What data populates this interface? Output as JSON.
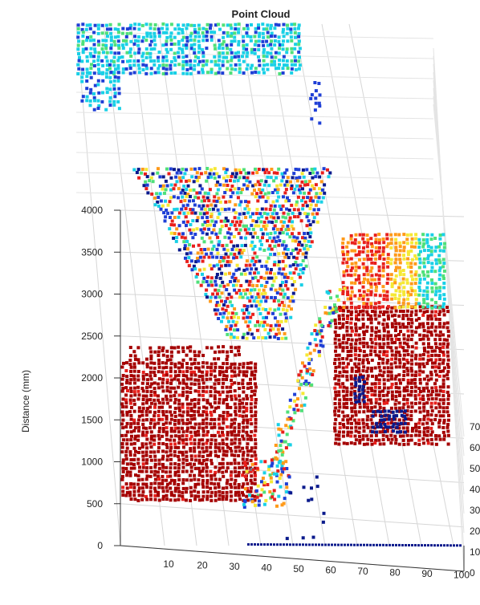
{
  "chart_data": {
    "type": "scatter",
    "title": "Point Cloud",
    "zlabel": "Distance (mm)",
    "xlabel": "",
    "ylabel": "",
    "x_ticks": [
      "10",
      "20",
      "30",
      "40",
      "50",
      "60",
      "70",
      "80",
      "90",
      "100"
    ],
    "z_ticks": [
      "0",
      "500",
      "1000",
      "1500",
      "2000",
      "2500",
      "3000",
      "3500",
      "4000"
    ],
    "y_ticks": [
      "0",
      "10",
      "20",
      "30",
      "40",
      "50",
      "60",
      "70"
    ],
    "x_range": [
      0,
      100
    ],
    "y_range": [
      0,
      70
    ],
    "z_range": [
      0,
      4000
    ],
    "grid": true,
    "colormap": "jet",
    "colors": {
      "near_dark_red": "#a50000",
      "red": "#e8201c",
      "orange": "#ff9a1a",
      "yellow": "#f5e834",
      "green": "#4fe07a",
      "cyan": "#19d0e6",
      "blue": "#1f3fd6",
      "dark_blue": "#0a1a8c"
    }
  }
}
